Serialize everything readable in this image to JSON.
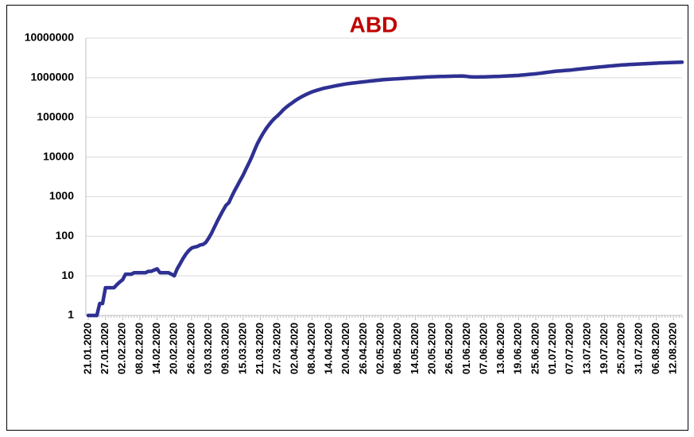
{
  "chart_data": {
    "type": "line",
    "title": "ABD",
    "log_scale": true,
    "grid": true,
    "ylim": [
      1,
      10000000
    ],
    "yticks": [
      1,
      10,
      100,
      1000,
      10000,
      100000,
      1000000,
      10000000
    ],
    "categories": [
      "21.01.2020",
      null,
      null,
      null,
      null,
      null,
      "27.01.2020",
      null,
      null,
      null,
      null,
      null,
      "02.02.2020",
      null,
      null,
      null,
      null,
      null,
      "08.02.2020",
      null,
      null,
      null,
      null,
      null,
      "14.02.2020",
      null,
      null,
      null,
      null,
      null,
      "20.02.2020",
      null,
      null,
      null,
      null,
      null,
      "26.02.2020",
      null,
      null,
      null,
      null,
      null,
      "03.03.2020",
      null,
      null,
      null,
      null,
      null,
      "09.03.2020",
      null,
      null,
      null,
      null,
      null,
      "15.03.2020",
      null,
      null,
      null,
      null,
      null,
      "21.03.2020",
      null,
      null,
      null,
      null,
      null,
      "27.03.2020",
      null,
      null,
      null,
      null,
      null,
      "02.04.2020",
      null,
      null,
      null,
      null,
      null,
      "08.04.2020",
      null,
      null,
      null,
      null,
      null,
      "14.04.2020",
      null,
      null,
      null,
      null,
      null,
      "20.04.2020",
      null,
      null,
      null,
      null,
      null,
      "26.04.2020",
      null,
      null,
      null,
      null,
      null,
      "02.05.2020",
      null,
      null,
      null,
      null,
      null,
      "08.05.2020",
      null,
      null,
      null,
      null,
      null,
      "14.05.2020",
      null,
      null,
      null,
      null,
      null,
      "20.05.2020",
      null,
      null,
      null,
      null,
      null,
      "26.05.2020",
      null,
      null,
      null,
      null,
      null,
      "01.06.2020",
      null,
      null,
      null,
      null,
      null,
      "07.06.2020",
      null,
      null,
      null,
      null,
      null,
      "13.06.2020",
      null,
      null,
      null,
      null,
      null,
      "19.06.2020",
      null,
      null,
      null,
      null,
      null,
      "25.06.2020",
      null,
      null,
      null,
      null,
      null,
      "01.07.2020",
      null,
      null,
      null,
      null,
      null,
      "07.07.2020",
      null,
      null,
      null,
      null,
      null,
      "13.07.2020",
      null,
      null,
      null,
      null,
      null,
      "19.07.2020",
      null,
      null,
      null,
      null,
      null,
      "25.07.2020",
      null,
      null,
      null,
      null,
      null,
      "31.07.2020",
      null,
      null,
      null,
      null,
      null,
      "06.08.2020",
      null,
      null,
      null,
      null,
      null,
      "12.08.2020",
      null,
      null,
      null
    ],
    "series": [
      {
        "color": "#2e3192",
        "values": [
          1,
          1,
          1,
          1,
          2,
          2,
          5,
          5,
          5,
          5,
          6,
          7,
          8,
          11,
          11,
          11,
          12,
          12,
          12,
          12,
          12,
          13,
          13,
          14,
          15,
          12,
          12,
          12,
          12,
          11,
          10,
          15,
          20,
          27,
          35,
          43,
          50,
          53,
          55,
          60,
          62,
          70,
          90,
          120,
          170,
          240,
          330,
          450,
          600,
          700,
          1000,
          1400,
          1900,
          2600,
          3500,
          5000,
          7000,
          10000,
          15000,
          22000,
          30000,
          40000,
          52000,
          65000,
          80000,
          95000,
          110000,
          130000,
          155000,
          180000,
          205000,
          230000,
          260000,
          290000,
          320000,
          350000,
          380000,
          410000,
          440000,
          465000,
          490000,
          515000,
          540000,
          560000,
          580000,
          600000,
          620000,
          640000,
          660000,
          680000,
          700000,
          715000,
          730000,
          745000,
          760000,
          775000,
          790000,
          805000,
          820000,
          835000,
          850000,
          865000,
          880000,
          895000,
          905000,
          915000,
          925000,
          935000,
          945000,
          955000,
          965000,
          975000,
          985000,
          995000,
          1005000,
          1015000,
          1025000,
          1035000,
          1045000,
          1050000,
          1060000,
          1065000,
          1070000,
          1075000,
          1080000,
          1085000,
          1090000,
          1095000,
          1100000,
          1105000,
          1110000,
          1100000,
          1080000,
          1060000,
          1050000,
          1045000,
          1045000,
          1050000,
          1055000,
          1060000,
          1065000,
          1070000,
          1075000,
          1080000,
          1090000,
          1100000,
          1110000,
          1120000,
          1130000,
          1140000,
          1150000,
          1165000,
          1180000,
          1200000,
          1220000,
          1240000,
          1260000,
          1285000,
          1310000,
          1340000,
          1370000,
          1400000,
          1430000,
          1460000,
          1480000,
          1500000,
          1520000,
          1540000,
          1560000,
          1590000,
          1620000,
          1650000,
          1680000,
          1710000,
          1740000,
          1770000,
          1800000,
          1830000,
          1860000,
          1890000,
          1920000,
          1950000,
          1980000,
          2010000,
          2040000,
          2070000,
          2100000,
          2120000,
          2140000,
          2160000,
          2180000,
          2200000,
          2220000,
          2240000,
          2260000,
          2280000,
          2300000,
          2320000,
          2340000,
          2355000,
          2370000,
          2385000,
          2400000,
          2415000,
          2430000,
          2445000,
          2460000,
          2475000
        ]
      }
    ]
  }
}
